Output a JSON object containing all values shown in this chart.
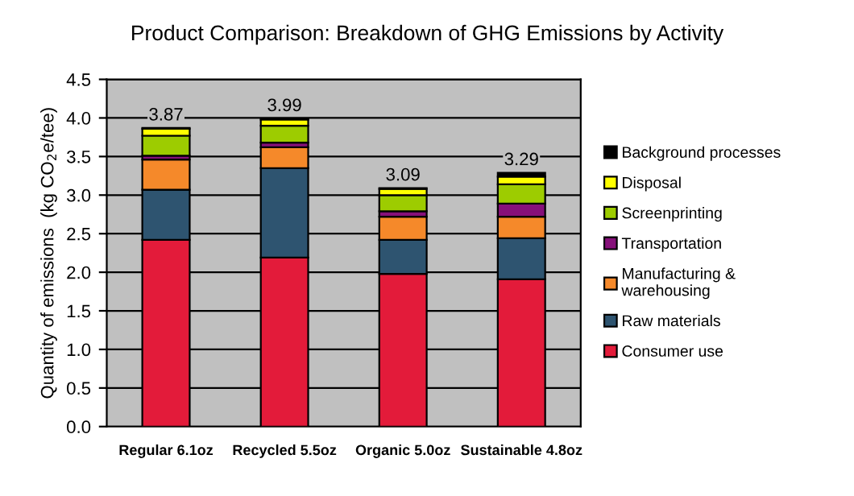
{
  "chart_data": {
    "type": "bar",
    "stacked": true,
    "title": "Product Comparison: Breakdown of GHG Emissions by Activity",
    "ylabel": "Quantity of emissions  (kg CO$_{2}$e/tee)",
    "categories": [
      "Regular 6.1oz",
      "Recycled 5.5oz",
      "Organic 5.0oz",
      "Sustainable 4.8oz"
    ],
    "series": [
      {
        "name": "Consumer use",
        "color": "#e31b3a",
        "values": [
          2.42,
          2.19,
          1.98,
          1.91
        ]
      },
      {
        "name": "Raw materials",
        "color": "#2e5470",
        "values": [
          0.65,
          1.16,
          0.44,
          0.53
        ]
      },
      {
        "name": "Manufacturing &\nwarehousing",
        "color": "#f5892a",
        "values": [
          0.39,
          0.27,
          0.3,
          0.28
        ]
      },
      {
        "name": "Transportation",
        "color": "#86107a",
        "values": [
          0.05,
          0.06,
          0.07,
          0.17
        ]
      },
      {
        "name": "Screenprinting",
        "color": "#9dcc00",
        "values": [
          0.26,
          0.22,
          0.21,
          0.25
        ]
      },
      {
        "name": "Disposal",
        "color": "#ffff00",
        "values": [
          0.09,
          0.08,
          0.08,
          0.1
        ]
      },
      {
        "name": "Background processes",
        "color": "#000000",
        "values": [
          0.01,
          0.01,
          0.01,
          0.05
        ]
      }
    ],
    "totals": [
      "3.87",
      "3.99",
      "3.09",
      "3.29"
    ],
    "ylim": [
      0,
      4.5
    ],
    "yticks": [
      {
        "value": 0,
        "label": "0.0"
      },
      {
        "value": 0.5,
        "label": "0.5"
      },
      {
        "value": 1,
        "label": "1.0"
      },
      {
        "value": 1.5,
        "label": "1.5"
      },
      {
        "value": 2,
        "label": "2.0"
      },
      {
        "value": 2.5,
        "label": "2.5"
      },
      {
        "value": 3,
        "label": "3.0"
      },
      {
        "value": 3.5,
        "label": "3.5"
      },
      {
        "value": 4,
        "label": "4.0"
      },
      {
        "value": 4.5,
        "label": "4.5"
      }
    ],
    "grid": "y",
    "legend": "right"
  }
}
